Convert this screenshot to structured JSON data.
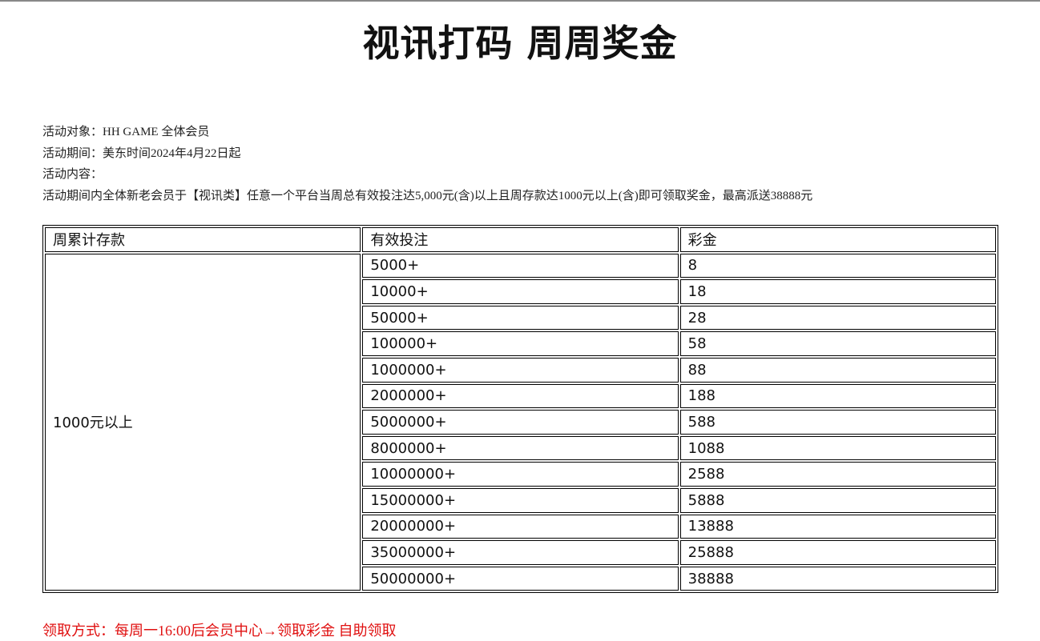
{
  "title": "视讯打码 周周奖金",
  "info": [
    "活动对象：HH GAME 全体会员",
    "活动期间：美东时间2024年4月22日起",
    "活动内容：",
    "活动期间内全体新老会员于【视讯类】任意一个平台当周总有效投注达5,000元(含)以上且周存款达1000元以上(含)即可领取奖金，最高派送38888元"
  ],
  "table": {
    "headers": [
      "周累计存款",
      "有效投注",
      "彩金"
    ],
    "deposit": "1000元以上",
    "rows": [
      [
        "5000+",
        "8"
      ],
      [
        "10000+",
        "18"
      ],
      [
        "50000+",
        "28"
      ],
      [
        "100000+",
        "58"
      ],
      [
        "1000000+",
        "88"
      ],
      [
        "2000000+",
        "188"
      ],
      [
        "5000000+",
        "588"
      ],
      [
        "8000000+",
        "1088"
      ],
      [
        "10000000+",
        "2588"
      ],
      [
        "15000000+",
        "5888"
      ],
      [
        "20000000+",
        "13888"
      ],
      [
        "35000000+",
        "25888"
      ],
      [
        "50000000+",
        "38888"
      ]
    ]
  },
  "footer": {
    "label": "领取方式：",
    "value": "每周一16:00后会员中心→领取彩金 自助领取"
  },
  "colors": {
    "accent": "#e01010"
  }
}
